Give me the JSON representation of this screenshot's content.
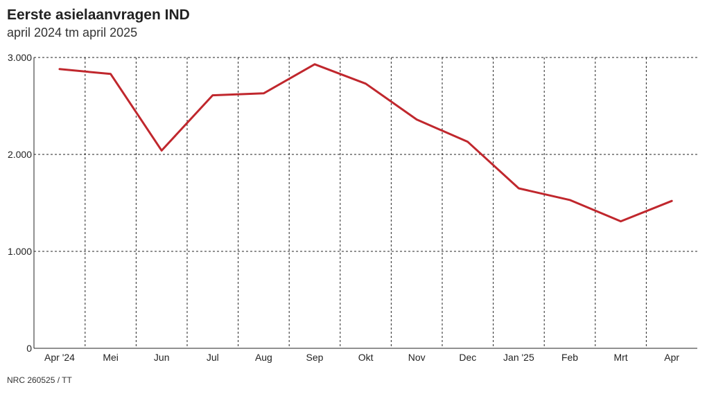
{
  "header": {
    "title": "Eerste asielaanvragen IND",
    "subtitle": "april 2024 tm april 2025"
  },
  "footer": {
    "source": "NRC 260525 / TT"
  },
  "chart_data": {
    "type": "line",
    "title": "Eerste asielaanvragen IND",
    "subtitle": "april 2024 tm april 2025",
    "categories": [
      "Apr '24",
      "Mei",
      "Jun",
      "Jul",
      "Aug",
      "Sep",
      "Okt",
      "Nov",
      "Dec",
      "Jan '25",
      "Feb",
      "Mrt",
      "Apr"
    ],
    "series": [
      {
        "values": [
          2880,
          2830,
          2040,
          2610,
          2630,
          2930,
          2730,
          2360,
          2130,
          1650,
          1530,
          1310,
          1520
        ],
        "color": "#c0272d"
      }
    ],
    "ylim": [
      0,
      3000
    ],
    "yticks": [
      0,
      1000,
      2000,
      3000
    ],
    "ytick_labels": [
      "0",
      "1.000",
      "2.000",
      "3.000"
    ],
    "grid": true,
    "grid_style": "dashed",
    "legend": "none"
  }
}
